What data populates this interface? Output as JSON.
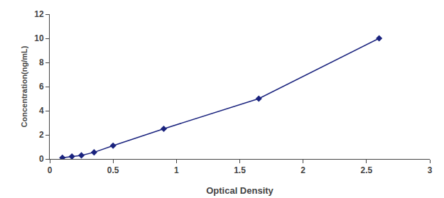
{
  "chart_data": {
    "type": "line",
    "x": [
      0.1,
      0.175,
      0.25,
      0.35,
      0.5,
      0.9,
      1.65,
      2.6
    ],
    "values": [
      0.1,
      0.2,
      0.3,
      0.55,
      1.1,
      2.5,
      5.0,
      10.0
    ],
    "xlabel": "Optical Density",
    "ylabel": "Concentration(ng/mL)",
    "xlim": [
      0,
      3
    ],
    "ylim": [
      0,
      12
    ],
    "xticks": [
      0,
      0.5,
      1,
      1.5,
      2,
      2.5,
      3
    ],
    "yticks": [
      0,
      2,
      4,
      6,
      8,
      10,
      12
    ],
    "color": "#1a237e",
    "marker": "diamond",
    "grid": false
  }
}
